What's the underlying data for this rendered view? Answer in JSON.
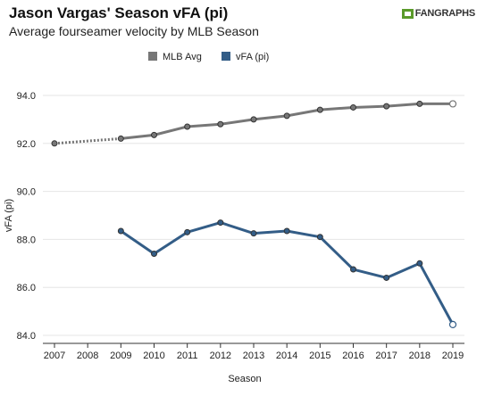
{
  "header": {
    "title": "Jason Vargas' Season vFA (pi)",
    "subtitle": "Average fourseamer velocity by MLB Season",
    "brand": "FANGRAPHS"
  },
  "chart_data": {
    "type": "line",
    "title": "Jason Vargas' Season vFA (pi)",
    "subtitle": "Average fourseamer velocity by MLB Season",
    "xlabel": "Season",
    "ylabel": "vFA (pi)",
    "x": [
      2007,
      2008,
      2009,
      2010,
      2011,
      2012,
      2013,
      2014,
      2015,
      2016,
      2017,
      2018,
      2019
    ],
    "xticks": [
      "2007",
      "2008",
      "2009",
      "2010",
      "2011",
      "2012",
      "2013",
      "2014",
      "2015",
      "2016",
      "2017",
      "2018",
      "2019"
    ],
    "yticks": [
      "84.0",
      "86.0",
      "88.0",
      "90.0",
      "92.0",
      "94.0"
    ],
    "ylim": [
      83.5,
      94.5
    ],
    "grid": true,
    "legend_position": "top-center",
    "series": [
      {
        "name": "MLB Avg",
        "color": "#777777",
        "points": [
          [
            2007,
            92.0
          ],
          [
            2009,
            92.2
          ],
          [
            2010,
            92.35
          ],
          [
            2011,
            92.7
          ],
          [
            2012,
            92.8
          ],
          [
            2013,
            93.0
          ],
          [
            2014,
            93.15
          ],
          [
            2015,
            93.4
          ],
          [
            2016,
            93.5
          ],
          [
            2017,
            93.55
          ],
          [
            2018,
            93.65
          ],
          [
            2019,
            93.65
          ]
        ],
        "dashed_segment": [
          2007,
          2009
        ]
      },
      {
        "name": "vFA (pi)",
        "color": "#335d87",
        "points": [
          [
            2009,
            88.35
          ],
          [
            2010,
            87.4
          ],
          [
            2011,
            88.3
          ],
          [
            2012,
            88.7
          ],
          [
            2013,
            88.25
          ],
          [
            2014,
            88.35
          ],
          [
            2015,
            88.1
          ],
          [
            2016,
            86.75
          ],
          [
            2017,
            86.4
          ],
          [
            2018,
            87.0
          ],
          [
            2019,
            84.45
          ]
        ]
      }
    ]
  }
}
